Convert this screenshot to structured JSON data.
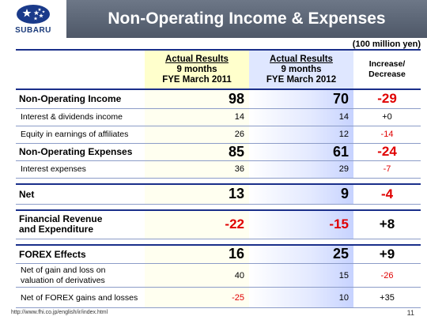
{
  "header": {
    "brand": "SUBARU",
    "title": "Non-Operating Income & Expenses"
  },
  "unit": "(100 million yen)",
  "columns": {
    "col1": [
      "Actual Results",
      "9 months",
      "FYE March 2011"
    ],
    "col2": [
      "Actual Results",
      "9 months",
      "FYE March 2012"
    ],
    "col3": [
      "Increase/",
      "Decrease"
    ]
  },
  "rows": {
    "noi": {
      "label": "Non-Operating Income",
      "a": "98",
      "b": "70",
      "c": "-29"
    },
    "idi": {
      "label": "Interest & dividends income",
      "a": "14",
      "b": "14",
      "c": "+0"
    },
    "eea": {
      "label": "Equity in earnings of affiliates",
      "a": "26",
      "b": "12",
      "c": "-14"
    },
    "noe": {
      "label": "Non-Operating Expenses",
      "a": "85",
      "b": "61",
      "c": "-24"
    },
    "ie": {
      "label": "Interest expenses",
      "a": "36",
      "b": "29",
      "c": "-7"
    },
    "net": {
      "label": "Net",
      "a": "13",
      "b": "9",
      "c": "-4"
    },
    "fre": {
      "label_line1": "Financial Revenue",
      "label_line2": "and Expenditure",
      "a": "-22",
      "b": "-15",
      "c": "+8"
    },
    "forex": {
      "label": "FOREX Effects",
      "a": "16",
      "b": "25",
      "c": "+9"
    },
    "ngl": {
      "label_line1": "Net of gain and loss on",
      "label_line2": "valuation of derivatives",
      "a": "40",
      "b": "15",
      "c": "-26"
    },
    "nfx": {
      "label": "Net of FOREX gains and losses",
      "a": "-25",
      "b": "10",
      "c": "+35"
    }
  },
  "footer": {
    "url": "http://www.fhi.co.jp/english/ir/index.html",
    "page": "11"
  }
}
